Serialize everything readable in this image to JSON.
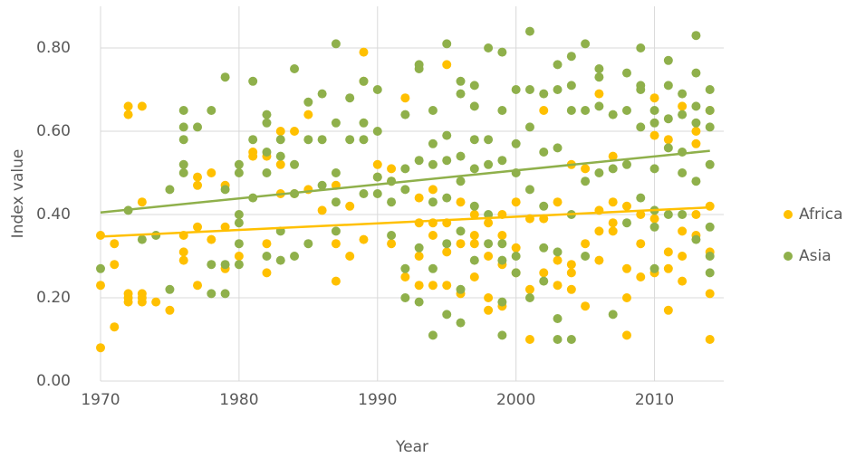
{
  "chart_data": {
    "type": "scatter",
    "x_label": "Year",
    "y_label": "Index value",
    "xlim": [
      1970,
      2015
    ],
    "xticks": [
      1970,
      1980,
      1990,
      2000,
      2010
    ],
    "ylim": [
      0,
      0.9
    ],
    "yticks": [
      {
        "value": 0,
        "label": "0.00"
      },
      {
        "value": 0.2,
        "label": "0.20"
      },
      {
        "value": 0.4,
        "label": "0.40"
      },
      {
        "value": 0.6,
        "label": "0.60"
      },
      {
        "value": 0.8,
        "label": "0.80"
      }
    ],
    "grid": true,
    "legend": "right",
    "series": [
      {
        "name": "Africa",
        "color": "#ffc000",
        "x": [
          1970,
          1970,
          1970,
          1971,
          1971,
          1971,
          1972,
          1972,
          1972,
          1972,
          1972,
          1973,
          1973,
          1973,
          1973,
          1973,
          1974,
          1975,
          1976,
          1976,
          1976,
          1977,
          1977,
          1977,
          1977,
          1978,
          1978,
          1979,
          1979,
          1979,
          1980,
          1981,
          1981,
          1982,
          1982,
          1982,
          1983,
          1983,
          1983,
          1984,
          1984,
          1985,
          1985,
          1986,
          1987,
          1987,
          1987,
          1988,
          1988,
          1989,
          1989,
          1989,
          1990,
          1990,
          1991,
          1991,
          1991,
          1992,
          1992,
          1993,
          1993,
          1993,
          1993,
          1994,
          1994,
          1994,
          1994,
          1995,
          1995,
          1995,
          1995,
          1996,
          1996,
          1996,
          1997,
          1997,
          1997,
          1997,
          1998,
          1998,
          1998,
          1998,
          1999,
          1999,
          1999,
          1999,
          2000,
          2000,
          2000,
          2001,
          2001,
          2001,
          2002,
          2002,
          2002,
          2003,
          2003,
          2003,
          2004,
          2004,
          2004,
          2004,
          2005,
          2005,
          2005,
          2006,
          2006,
          2006,
          2006,
          2007,
          2007,
          2007,
          2007,
          2008,
          2008,
          2008,
          2008,
          2009,
          2009,
          2009,
          2010,
          2010,
          2010,
          2010,
          2011,
          2011,
          2011,
          2011,
          2012,
          2012,
          2012,
          2012,
          2013,
          2013,
          2013,
          2013,
          2014,
          2014,
          2014,
          2014,
          2014
        ],
        "values": [
          0.08,
          0.23,
          0.35,
          0.13,
          0.28,
          0.33,
          0.66,
          0.64,
          0.21,
          0.19,
          0.2,
          0.66,
          0.43,
          0.21,
          0.19,
          0.2,
          0.19,
          0.17,
          0.35,
          0.31,
          0.29,
          0.49,
          0.47,
          0.37,
          0.23,
          0.5,
          0.34,
          0.47,
          0.37,
          0.27,
          0.3,
          0.55,
          0.54,
          0.54,
          0.33,
          0.26,
          0.6,
          0.52,
          0.45,
          0.6,
          0.45,
          0.64,
          0.46,
          0.41,
          0.47,
          0.33,
          0.24,
          0.42,
          0.3,
          0.79,
          0.72,
          0.34,
          0.52,
          0.49,
          0.51,
          0.48,
          0.33,
          0.68,
          0.25,
          0.44,
          0.38,
          0.3,
          0.23,
          0.46,
          0.38,
          0.35,
          0.23,
          0.76,
          0.38,
          0.31,
          0.23,
          0.43,
          0.33,
          0.21,
          0.4,
          0.35,
          0.25,
          0.33,
          0.38,
          0.3,
          0.2,
          0.17,
          0.4,
          0.35,
          0.28,
          0.18,
          0.43,
          0.32,
          0.26,
          0.39,
          0.22,
          0.1,
          0.65,
          0.39,
          0.26,
          0.43,
          0.29,
          0.23,
          0.52,
          0.28,
          0.26,
          0.22,
          0.51,
          0.33,
          0.18,
          0.69,
          0.41,
          0.36,
          0.29,
          0.54,
          0.43,
          0.38,
          0.36,
          0.42,
          0.27,
          0.2,
          0.11,
          0.4,
          0.33,
          0.25,
          0.68,
          0.59,
          0.39,
          0.26,
          0.58,
          0.31,
          0.27,
          0.17,
          0.66,
          0.36,
          0.3,
          0.24,
          0.6,
          0.57,
          0.4,
          0.35,
          0.65,
          0.42,
          0.31,
          0.21,
          0.1
        ],
        "trend": {
          "x": [
            1970,
            2014
          ],
          "values": [
            0.347,
            0.417
          ]
        }
      },
      {
        "name": "Asia",
        "color": "#8fb04b",
        "x": [
          1970,
          1972,
          1973,
          1974,
          1975,
          1975,
          1976,
          1976,
          1976,
          1976,
          1976,
          1977,
          1978,
          1978,
          1978,
          1979,
          1979,
          1979,
          1979,
          1980,
          1980,
          1980,
          1980,
          1980,
          1980,
          1981,
          1981,
          1981,
          1982,
          1982,
          1982,
          1982,
          1982,
          1983,
          1983,
          1983,
          1983,
          1984,
          1984,
          1984,
          1984,
          1985,
          1985,
          1985,
          1986,
          1986,
          1986,
          1987,
          1987,
          1987,
          1987,
          1987,
          1988,
          1988,
          1989,
          1989,
          1989,
          1989,
          1990,
          1990,
          1990,
          1990,
          1991,
          1991,
          1991,
          1992,
          1992,
          1992,
          1992,
          1992,
          1993,
          1993,
          1993,
          1993,
          1993,
          1994,
          1994,
          1994,
          1994,
          1994,
          1994,
          1995,
          1995,
          1995,
          1995,
          1995,
          1995,
          1996,
          1996,
          1996,
          1996,
          1996,
          1996,
          1996,
          1997,
          1997,
          1997,
          1997,
          1997,
          1997,
          1998,
          1998,
          1998,
          1998,
          1998,
          1999,
          1999,
          1999,
          1999,
          1999,
          1999,
          1999,
          2000,
          2000,
          2000,
          2000,
          2000,
          2001,
          2001,
          2001,
          2001,
          2001,
          2002,
          2002,
          2002,
          2002,
          2002,
          2003,
          2003,
          2003,
          2003,
          2003,
          2003,
          2004,
          2004,
          2004,
          2004,
          2004,
          2005,
          2005,
          2005,
          2005,
          2006,
          2006,
          2006,
          2006,
          2007,
          2007,
          2007,
          2008,
          2008,
          2008,
          2008,
          2009,
          2009,
          2009,
          2009,
          2009,
          2010,
          2010,
          2010,
          2010,
          2010,
          2010,
          2011,
          2011,
          2011,
          2011,
          2011,
          2012,
          2012,
          2012,
          2012,
          2012,
          2013,
          2013,
          2013,
          2013,
          2013,
          2013,
          2014,
          2014,
          2014,
          2014,
          2014,
          2014,
          2014
        ],
        "values": [
          0.27,
          0.41,
          0.34,
          0.35,
          0.46,
          0.22,
          0.65,
          0.61,
          0.58,
          0.52,
          0.5,
          0.61,
          0.65,
          0.28,
          0.21,
          0.73,
          0.46,
          0.28,
          0.21,
          0.52,
          0.5,
          0.4,
          0.38,
          0.33,
          0.28,
          0.72,
          0.58,
          0.44,
          0.64,
          0.62,
          0.55,
          0.5,
          0.3,
          0.58,
          0.54,
          0.36,
          0.29,
          0.75,
          0.52,
          0.45,
          0.3,
          0.67,
          0.58,
          0.33,
          0.69,
          0.58,
          0.47,
          0.81,
          0.62,
          0.5,
          0.43,
          0.36,
          0.68,
          0.58,
          0.72,
          0.62,
          0.58,
          0.45,
          0.7,
          0.6,
          0.49,
          0.45,
          0.48,
          0.43,
          0.35,
          0.64,
          0.51,
          0.46,
          0.27,
          0.2,
          0.76,
          0.75,
          0.53,
          0.32,
          0.19,
          0.65,
          0.57,
          0.52,
          0.43,
          0.27,
          0.11,
          0.81,
          0.59,
          0.53,
          0.44,
          0.33,
          0.16,
          0.72,
          0.69,
          0.54,
          0.48,
          0.36,
          0.22,
          0.14,
          0.71,
          0.66,
          0.58,
          0.51,
          0.42,
          0.29,
          0.8,
          0.58,
          0.52,
          0.4,
          0.33,
          0.79,
          0.65,
          0.53,
          0.33,
          0.29,
          0.19,
          0.11,
          0.7,
          0.57,
          0.5,
          0.3,
          0.26,
          0.84,
          0.7,
          0.61,
          0.46,
          0.2,
          0.69,
          0.55,
          0.42,
          0.32,
          0.24,
          0.76,
          0.7,
          0.56,
          0.31,
          0.15,
          0.1,
          0.78,
          0.71,
          0.65,
          0.4,
          0.1,
          0.81,
          0.65,
          0.48,
          0.3,
          0.75,
          0.73,
          0.66,
          0.5,
          0.64,
          0.51,
          0.16,
          0.74,
          0.65,
          0.52,
          0.38,
          0.8,
          0.71,
          0.7,
          0.61,
          0.44,
          0.65,
          0.62,
          0.51,
          0.41,
          0.37,
          0.27,
          0.77,
          0.71,
          0.63,
          0.56,
          0.4,
          0.69,
          0.64,
          0.55,
          0.5,
          0.4,
          0.83,
          0.74,
          0.66,
          0.62,
          0.48,
          0.34,
          0.7,
          0.65,
          0.61,
          0.52,
          0.37,
          0.26,
          0.3
        ],
        "trend": {
          "x": [
            1970,
            2014
          ],
          "values": [
            0.405,
            0.553
          ]
        }
      }
    ]
  }
}
